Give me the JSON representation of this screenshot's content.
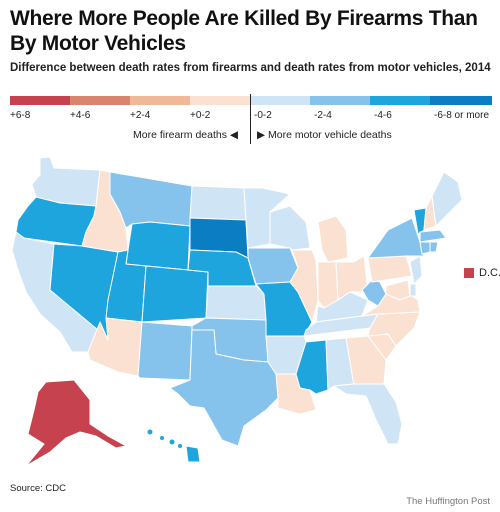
{
  "title": "Where More People Are Killed By Firearms Than By Motor Vehicles",
  "subtitle": "Difference between death rates from firearms and death rates from motor vehicles, 2014",
  "legend": [
    {
      "label": "+6-8",
      "color": "#c6424e"
    },
    {
      "label": "+4-6",
      "color": "#d9846c"
    },
    {
      "label": "+2-4",
      "color": "#efb896"
    },
    {
      "label": "+0-2",
      "color": "#fbe1d1"
    },
    {
      "label": "-0-2",
      "color": "#cfe5f6"
    },
    {
      "label": "-2-4",
      "color": "#85c3ec"
    },
    {
      "label": "-4-6",
      "color": "#1ea5de"
    },
    {
      "label": "-6-8 or more",
      "color": "#0b7ec3"
    }
  ],
  "direction": {
    "left": "More firearm deaths",
    "right": "More motor vehicle deaths"
  },
  "states": {
    "WA": 4,
    "OR": 6,
    "CA": 4,
    "NV": 6,
    "ID": 3,
    "MT": 5,
    "WY": 6,
    "UT": 6,
    "AZ": 3,
    "CO": 6,
    "NM": 5,
    "ND": 4,
    "SD": 7,
    "NE": 6,
    "KS": 4,
    "OK": 5,
    "TX": 5,
    "MN": 4,
    "IA": 5,
    "MO": 6,
    "AR": 4,
    "LA": 3,
    "WI": 4,
    "IL": 3,
    "MS": 6,
    "MI": 3,
    "IN": 3,
    "KY": 4,
    "TN": 4,
    "AL": 4,
    "OH": 3,
    "WV": 5,
    "GA": 3,
    "FL": 4,
    "SC": 3,
    "NC": 3,
    "VA": 3,
    "PA": 3,
    "NY": 5,
    "VT": 6,
    "NH": 3,
    "ME": 4,
    "MA": 5,
    "CT": 5,
    "RI": 5,
    "NJ": 4,
    "DE": 4,
    "MD": 3,
    "AK": 0,
    "HI": 6
  },
  "dc": {
    "label": "D.C.",
    "color": "#c6424e"
  },
  "source": "Source: CDC",
  "credit": "The Huffington Post"
}
